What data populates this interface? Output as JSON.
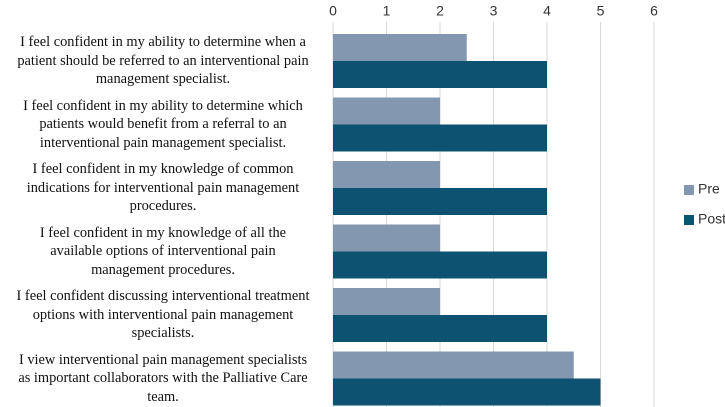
{
  "chart_data": {
    "type": "bar",
    "orientation": "horizontal",
    "categories": [
      [
        "I feel confident in my ability to determine when a",
        "patient should be referred to an interventional pain",
        "management specialist."
      ],
      [
        "I feel confident in my ability to determine which",
        "patients would benefit from a referral to an",
        "interventional pain management specialist."
      ],
      [
        "I feel confident in my knowledge of common",
        "indications for interventional pain management",
        "procedures."
      ],
      [
        "I feel confident in my knowledge of all the",
        "available options of interventional pain",
        "management procedures."
      ],
      [
        "I feel confident discussing interventional treatment",
        "options with interventional pain management",
        "specialists."
      ],
      [
        "I view interventional pain management specialists",
        "as important collaborators with the Palliative Care",
        "team."
      ]
    ],
    "series": [
      {
        "name": "Pre",
        "color": "#8497b0",
        "values": [
          2.5,
          2,
          2,
          2,
          2,
          4.5
        ]
      },
      {
        "name": "Post",
        "color": "#0e5272",
        "values": [
          4,
          4,
          4,
          4,
          4,
          5
        ]
      }
    ],
    "xlim": [
      0,
      6
    ],
    "xticks": [
      "0",
      "1",
      "2",
      "3",
      "4",
      "5",
      "6"
    ],
    "xaxis_position": "top",
    "grid": true,
    "legend_position": "right",
    "title": "",
    "xlabel": "",
    "ylabel": ""
  }
}
